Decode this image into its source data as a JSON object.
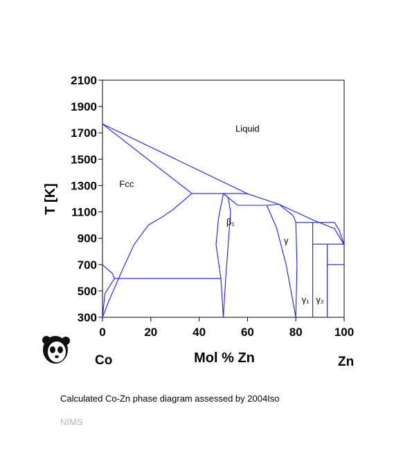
{
  "chart_data": {
    "type": "line",
    "xlabel": "Mol % Zn",
    "ylabel": "T [K]",
    "xlim": [
      0,
      100
    ],
    "ylim": [
      300,
      2100
    ],
    "xticks": [
      "0",
      "20",
      "40",
      "60",
      "80",
      "100"
    ],
    "yticks": [
      "300",
      "500",
      "700",
      "900",
      "1100",
      "1300",
      "1500",
      "1700",
      "1900",
      "2100"
    ],
    "elements": {
      "left": "Co",
      "right": "Zn"
    },
    "line_color": "#1a1aff",
    "phase_labels": [
      {
        "text": "Liquid",
        "x": 60,
        "y": 1710
      },
      {
        "text": "Fcc",
        "x": 10,
        "y": 1290
      },
      {
        "text": "β₁",
        "x": 53,
        "y": 1000
      },
      {
        "text": "γ",
        "x": 76,
        "y": 860
      },
      {
        "text": "γ₁",
        "x": 84,
        "y": 410
      },
      {
        "text": "γ₂",
        "x": 90,
        "y": 410
      }
    ],
    "series": [
      {
        "points": [
          [
            0,
            1768
          ],
          [
            60,
            1238
          ],
          [
            73,
            1158
          ],
          [
            87,
            1040
          ],
          [
            96,
            973
          ],
          [
            100,
            850
          ]
        ]
      },
      {
        "points": [
          [
            0,
            1768
          ],
          [
            37,
            1240
          ]
        ]
      },
      {
        "points": [
          [
            37,
            1240
          ],
          [
            50,
            1240
          ],
          [
            57,
            1240
          ],
          [
            60,
            1238
          ]
        ]
      },
      {
        "points": [
          [
            0,
            300
          ],
          [
            3,
            440
          ],
          [
            8,
            650
          ],
          [
            13,
            850
          ],
          [
            19,
            1000
          ],
          [
            25,
            1065
          ],
          [
            29,
            1115
          ],
          [
            37,
            1240
          ]
        ]
      },
      {
        "points": [
          [
            0,
            698
          ],
          [
            4,
            635
          ],
          [
            5,
            595
          ]
        ]
      },
      {
        "points": [
          [
            0,
            300
          ],
          [
            1,
            480
          ],
          [
            5,
            595
          ]
        ]
      },
      {
        "points": [
          [
            5,
            595
          ],
          [
            49,
            595
          ]
        ]
      },
      {
        "points": [
          [
            50,
            1240
          ],
          [
            48,
            1050
          ],
          [
            47,
            850
          ],
          [
            49,
            595
          ],
          [
            50,
            300
          ]
        ]
      },
      {
        "points": [
          [
            50,
            1240
          ],
          [
            52,
            1210
          ],
          [
            53,
            1100
          ],
          [
            52,
            850
          ],
          [
            51,
            600
          ],
          [
            50,
            300
          ]
        ]
      },
      {
        "points": [
          [
            50,
            1240
          ],
          [
            56,
            1150
          ]
        ]
      },
      {
        "points": [
          [
            56,
            1150
          ],
          [
            68,
            1150
          ],
          [
            73,
            1158
          ]
        ]
      },
      {
        "points": [
          [
            68,
            1150
          ],
          [
            72,
            980
          ],
          [
            76,
            700
          ],
          [
            80,
            300
          ]
        ]
      },
      {
        "points": [
          [
            73,
            1158
          ],
          [
            79,
            1070
          ],
          [
            80,
            1020
          ],
          [
            80.5,
            700
          ],
          [
            80,
            300
          ]
        ]
      },
      {
        "points": [
          [
            80,
            1020
          ],
          [
            96,
            1020
          ],
          [
            98,
            960
          ],
          [
            100,
            850
          ]
        ]
      },
      {
        "points": [
          [
            87,
            1020
          ],
          [
            87,
            300
          ]
        ]
      },
      {
        "points": [
          [
            87,
            855
          ],
          [
            100,
            855
          ]
        ]
      },
      {
        "points": [
          [
            93,
            855
          ],
          [
            93,
            300
          ]
        ]
      },
      {
        "points": [
          [
            93,
            700
          ],
          [
            100,
            700
          ]
        ]
      }
    ]
  },
  "caption": "Calculated Co-Zn phase diagram assessed by 2004Iso",
  "credit": "NIMS",
  "logo_icon": "panda-icon"
}
